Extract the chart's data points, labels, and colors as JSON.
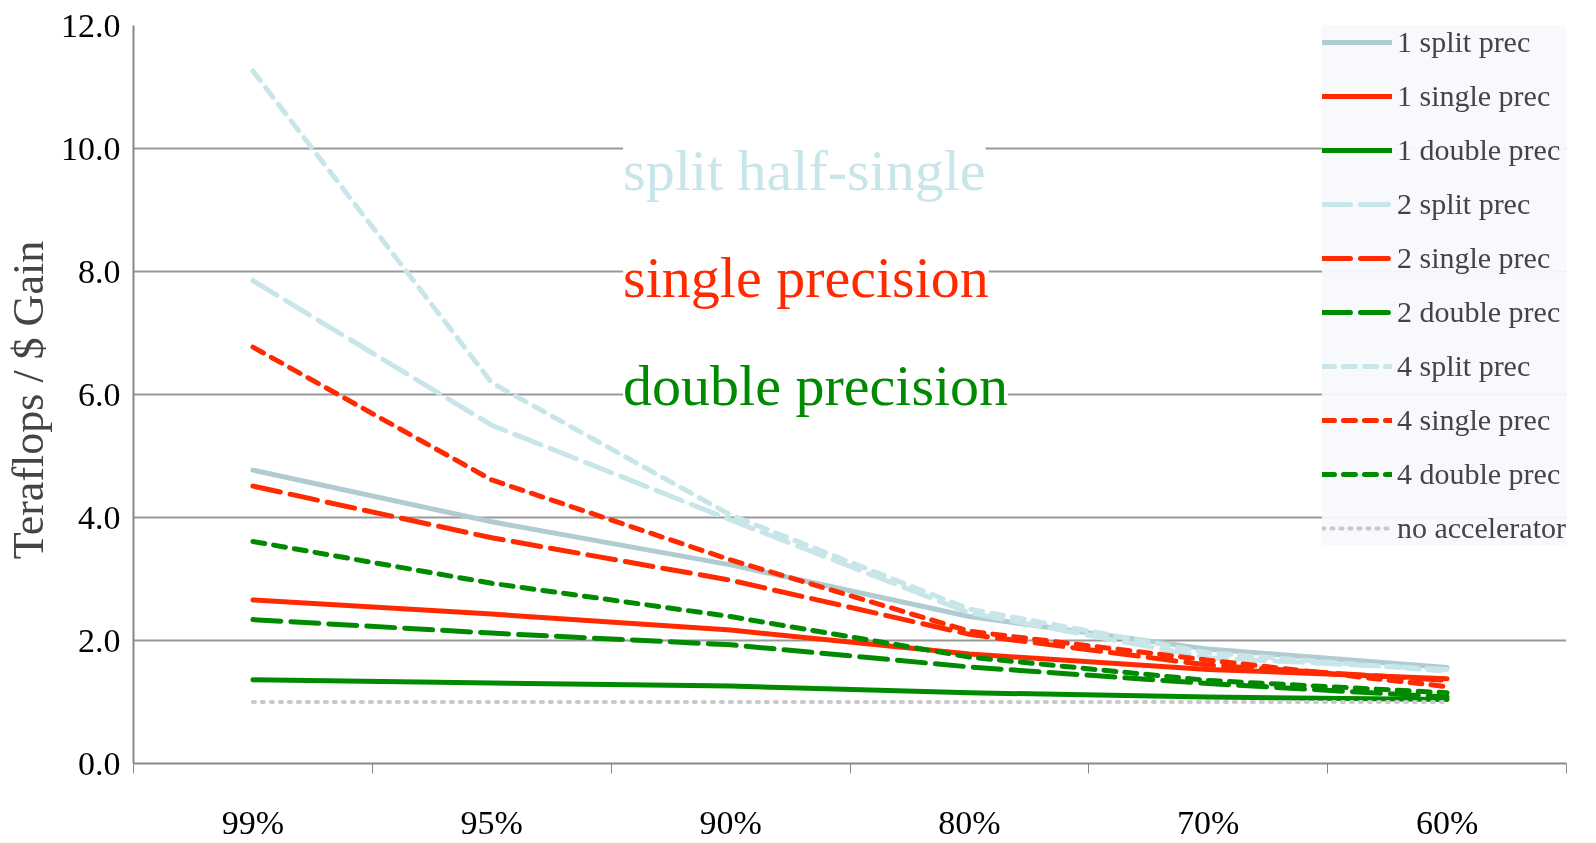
{
  "chart_data": {
    "type": "line",
    "ylabel": "Teraflops / $  Gain",
    "categories": [
      "99%",
      "95%",
      "90%",
      "80%",
      "70%",
      "60%"
    ],
    "ylim": [
      0,
      12
    ],
    "yticks": [
      {
        "value": 0,
        "label": "0.0"
      },
      {
        "value": 2,
        "label": "2.0"
      },
      {
        "value": 4,
        "label": "4.0"
      },
      {
        "value": 6,
        "label": "6.0"
      },
      {
        "value": 8,
        "label": "8.0"
      },
      {
        "value": 10,
        "label": "10.0"
      },
      {
        "value": 12,
        "label": "12.0"
      }
    ],
    "grid": "y",
    "legend": "top right",
    "annotations": [
      "split half-single",
      "single precision",
      "double precision"
    ],
    "series": [
      {
        "name": "1 split prec",
        "color": "#b0ccd0",
        "line_style": "solid",
        "values": [
          4.77,
          3.93,
          3.23,
          2.39,
          1.86,
          1.56
        ]
      },
      {
        "name": "1 single prec",
        "color": "#ff2a00",
        "line_style": "solid",
        "values": [
          2.66,
          2.43,
          2.17,
          1.78,
          1.53,
          1.38
        ]
      },
      {
        "name": "1 double prec",
        "color": "#008a00",
        "line_style": "solid",
        "values": [
          1.36,
          1.31,
          1.26,
          1.15,
          1.08,
          1.04
        ]
      },
      {
        "name": "2 split prec",
        "color": "#c8e6ea",
        "line_style": "dashdot",
        "values": [
          7.85,
          5.5,
          3.96,
          2.45,
          1.72,
          1.53
        ]
      },
      {
        "name": "2 single prec",
        "color": "#ff2a00",
        "line_style": "dashdot",
        "values": [
          4.51,
          3.67,
          2.98,
          2.1,
          1.6,
          1.35
        ]
      },
      {
        "name": "2 double prec",
        "color": "#008a00",
        "line_style": "dashdot",
        "values": [
          2.34,
          2.12,
          1.93,
          1.57,
          1.3,
          1.08
        ]
      },
      {
        "name": "4 split prec",
        "color": "#c8e6ea",
        "line_style": "dashed",
        "values": [
          11.26,
          6.19,
          4.04,
          2.51,
          1.8,
          1.5
        ]
      },
      {
        "name": "4 single prec",
        "color": "#ff2a00",
        "line_style": "dashed",
        "values": [
          6.77,
          4.61,
          3.31,
          2.15,
          1.68,
          1.25
        ]
      },
      {
        "name": "4 double prec",
        "color": "#008a00",
        "line_style": "dashed",
        "values": [
          3.61,
          2.93,
          2.39,
          1.73,
          1.35,
          1.15
        ]
      },
      {
        "name": "no accelerator",
        "color": "#c8c8c8",
        "line_style": "dotted",
        "values": [
          1.0,
          1.0,
          1.0,
          1.0,
          1.0,
          1.0
        ]
      }
    ]
  }
}
